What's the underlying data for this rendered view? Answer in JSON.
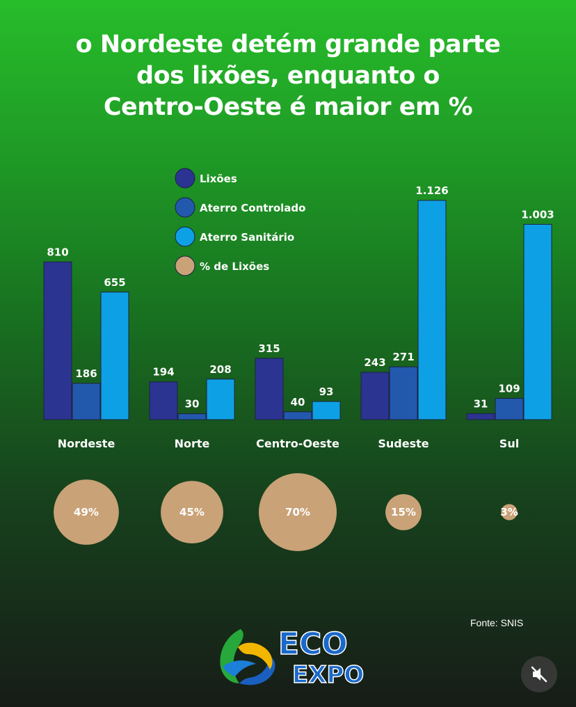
{
  "title": {
    "line1": "o Nordeste detém grande parte",
    "line2": "dos lixões, enquanto o",
    "line3": "Centro-Oeste é maior em %"
  },
  "chart_data": {
    "type": "bar",
    "categories": [
      "Nordeste",
      "Norte",
      "Centro-Oeste",
      "Sudeste",
      "Sul"
    ],
    "series": [
      {
        "name": "Lixões",
        "color": "#2b3490",
        "values": [
          810,
          194,
          315,
          243,
          31
        ],
        "labels": [
          "810",
          "194",
          "315",
          "243",
          "31"
        ]
      },
      {
        "name": "Aterro Controlado",
        "color": "#2359ad",
        "values": [
          186,
          30,
          40,
          271,
          109
        ],
        "labels": [
          "186",
          "30",
          "40",
          "271",
          "109"
        ]
      },
      {
        "name": "Aterro Sanitário",
        "color": "#0ea0e4",
        "values": [
          655,
          208,
          93,
          1126,
          1003
        ],
        "labels": [
          "655",
          "208",
          "93",
          "1.126",
          "1.003"
        ]
      }
    ],
    "percent_series": {
      "name": "% de Lixões",
      "color": "#c9a277",
      "values": [
        49,
        45,
        70,
        15,
        3
      ],
      "labels": [
        "49%",
        "45%",
        "70%",
        "15%",
        "3%"
      ]
    },
    "ylim": [
      0,
      1126
    ]
  },
  "source": "Fonte: SNIS",
  "logo": {
    "top": "ECO",
    "bottom": "EXPO"
  },
  "icons": {
    "mute": "volume-mute-icon"
  }
}
